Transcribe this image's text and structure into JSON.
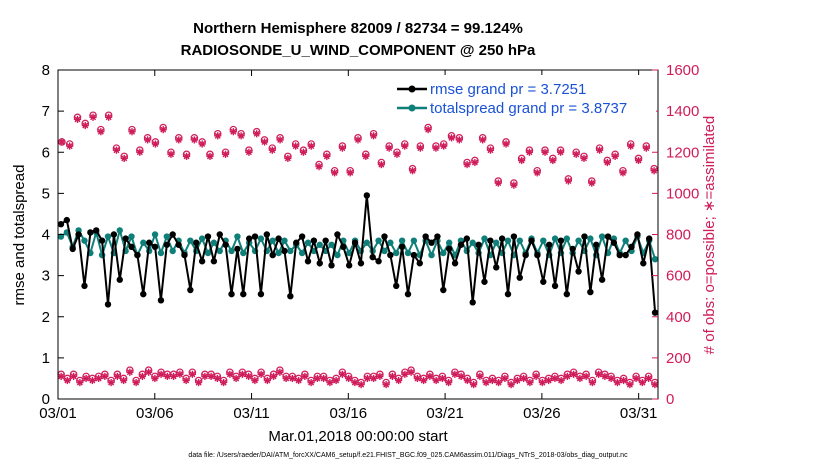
{
  "chart_data": {
    "type": "line",
    "title": "Northern Hemisphere 82009 / 82734 = 99.124%",
    "subtitle": "RADIOSONDE_U_WIND_COMPONENT @ 250 hPa",
    "xlabel": "Mar.01,2018 00:00:00 start",
    "ylabel_left": "rmse and totalspread",
    "ylabel_right": "# of obs: o=possible; ∗=assimilated",
    "footnote": "data file: /Users/raeder/DAI/ATM_forcXX/CAM6_setup/f.e21.FHIST_BGC.f09_025.CAM6assim.011/Diags_NTrS_2018-03/obs_diag_output.nc",
    "x_tick_values": [
      0,
      5,
      10,
      15,
      20,
      25,
      30
    ],
    "x_tick_labels": [
      "03/01",
      "03/06",
      "03/11",
      "03/16",
      "03/21",
      "03/26",
      "03/31"
    ],
    "xlim": [
      0,
      31
    ],
    "ylim_left": [
      0,
      8
    ],
    "y_ticks_left": [
      "0",
      "1",
      "2",
      "3",
      "4",
      "5",
      "6",
      "7",
      "8"
    ],
    "ylim_right": [
      0,
      1600
    ],
    "y_ticks_right": [
      "0",
      "200",
      "400",
      "600",
      "800",
      "1000",
      "1200",
      "1400",
      "1600"
    ],
    "legend": [
      {
        "label": "rmse grand pr = 3.7251",
        "color": "#000000"
      },
      {
        "label": "totalspread grand pr = 3.8737",
        "color": "#0f7f7a"
      }
    ],
    "legend_position": "top-right",
    "colors": {
      "rmse": "#000000",
      "totalspread": "#0f7f7a",
      "obs": "#cf1c5a"
    },
    "rmse": [
      4.25,
      4.35,
      3.65,
      4.0,
      2.75,
      4.05,
      4.1,
      3.85,
      2.3,
      4.0,
      2.9,
      3.9,
      3.7,
      3.5,
      2.55,
      3.8,
      3.7,
      2.4,
      3.75,
      4.0,
      3.75,
      3.5,
      2.65,
      3.8,
      3.35,
      3.95,
      3.35,
      4.0,
      3.75,
      2.55,
      3.65,
      2.55,
      3.9,
      3.95,
      2.55,
      4.0,
      3.5,
      3.9,
      3.6,
      2.5,
      3.8,
      3.95,
      3.35,
      3.85,
      3.3,
      3.85,
      3.25,
      4.0,
      3.7,
      3.25,
      3.8,
      3.3,
      4.95,
      3.45,
      3.35,
      3.95,
      3.5,
      2.75,
      3.7,
      2.55,
      3.5,
      3.3,
      3.95,
      3.8,
      3.95,
      2.65,
      3.65,
      3.3,
      3.75,
      3.9,
      2.35,
      3.75,
      2.85,
      3.85,
      3.2,
      3.9,
      2.55,
      3.95,
      2.95,
      3.5,
      3.85,
      3.5,
      2.85,
      3.75,
      2.75,
      3.85,
      2.55,
      3.65,
      3.1,
      3.95,
      2.6,
      3.75,
      2.9,
      3.95,
      3.8,
      3.5,
      3.5,
      3.7,
      4.0,
      3.3,
      3.9,
      2.1
    ],
    "totalspread": [
      3.95,
      4.05,
      3.7,
      4.1,
      3.85,
      3.55,
      4.05,
      3.5,
      3.95,
      3.55,
      4.1,
      3.6,
      3.95,
      3.5,
      3.8,
      3.6,
      4.0,
      3.55,
      3.95,
      3.6,
      3.85,
      3.55,
      3.85,
      3.6,
      3.9,
      3.55,
      3.8,
      3.6,
      3.85,
      3.6,
      3.95,
      3.55,
      3.8,
      3.6,
      3.9,
      3.6,
      3.85,
      3.55,
      3.85,
      3.6,
      3.75,
      3.55,
      3.8,
      3.6,
      3.75,
      3.6,
      3.75,
      3.5,
      3.85,
      3.55,
      3.85,
      3.6,
      3.8,
      3.6,
      3.85,
      3.6,
      3.8,
      3.55,
      3.85,
      3.55,
      3.85,
      3.5,
      3.85,
      3.5,
      3.85,
      3.55,
      3.8,
      3.5,
      3.85,
      3.6,
      3.8,
      3.55,
      3.9,
      3.5,
      3.8,
      3.55,
      3.85,
      3.5,
      3.85,
      3.55,
      3.9,
      3.55,
      3.85,
      3.5,
      3.9,
      3.55,
      3.9,
      3.55,
      3.85,
      3.6,
      3.9,
      3.5,
      3.95,
      3.55,
      3.9,
      3.55,
      3.85,
      3.6,
      3.95,
      3.55,
      3.85,
      3.4
    ],
    "obs_high_possible": [
      1250,
      1240,
      1370,
      1340,
      1380,
      1310,
      1380,
      1220,
      1180,
      1310,
      1210,
      1270,
      1250,
      1320,
      1200,
      1270,
      1190,
      1270,
      1250,
      1190,
      1290,
      1200,
      1310,
      1290,
      1210,
      1300,
      1260,
      1220,
      1270,
      1180,
      1240,
      1210,
      1240,
      1140,
      1190,
      1110,
      1230,
      1110,
      1270,
      1190,
      1290,
      1150,
      1230,
      1200,
      1240,
      1120,
      1230,
      1320,
      1230,
      1240,
      1280,
      1270,
      1150,
      1160,
      1270,
      1220,
      1060,
      1250,
      1050,
      1170,
      1210,
      1110,
      1210,
      1170,
      1210,
      1070,
      1200,
      1180,
      1060,
      1220,
      1160,
      1190,
      1110,
      1240,
      1170,
      1230,
      1120
    ],
    "obs_high_assimilated": [
      1250,
      1230,
      1360,
      1330,
      1370,
      1300,
      1370,
      1210,
      1170,
      1300,
      1200,
      1260,
      1240,
      1310,
      1190,
      1260,
      1180,
      1260,
      1240,
      1180,
      1280,
      1190,
      1300,
      1280,
      1200,
      1290,
      1250,
      1210,
      1260,
      1170,
      1230,
      1200,
      1230,
      1130,
      1180,
      1100,
      1220,
      1100,
      1260,
      1180,
      1280,
      1140,
      1220,
      1190,
      1230,
      1110,
      1220,
      1310,
      1220,
      1230,
      1270,
      1260,
      1140,
      1150,
      1260,
      1210,
      1050,
      1240,
      1040,
      1160,
      1200,
      1100,
      1200,
      1160,
      1200,
      1060,
      1190,
      1170,
      1050,
      1210,
      1150,
      1180,
      1100,
      1230,
      1160,
      1220,
      1110
    ],
    "obs_low_possible": [
      120,
      100,
      120,
      90,
      110,
      100,
      110,
      120,
      90,
      120,
      100,
      140,
      90,
      120,
      140,
      110,
      130,
      120,
      120,
      130,
      100,
      130,
      90,
      120,
      120,
      110,
      90,
      130,
      110,
      130,
      120,
      100,
      130,
      100,
      120,
      140,
      110,
      110,
      100,
      120,
      90,
      110,
      110,
      90,
      100,
      130,
      110,
      90,
      80,
      110,
      110,
      120,
      80,
      120,
      100,
      130,
      140,
      110,
      100,
      120,
      100,
      110,
      90,
      130,
      120,
      100,
      80,
      120,
      90,
      100,
      90,
      110,
      80,
      100,
      110,
      90,
      120,
      90,
      100,
      110,
      100,
      120,
      130,
      110,
      120,
      90,
      130,
      120,
      110,
      90,
      100,
      80,
      110,
      90,
      110,
      80
    ],
    "obs_low_assimilated": [
      110,
      90,
      110,
      80,
      100,
      90,
      100,
      110,
      80,
      110,
      90,
      130,
      80,
      110,
      130,
      100,
      120,
      110,
      110,
      120,
      90,
      120,
      80,
      110,
      110,
      100,
      80,
      120,
      100,
      120,
      110,
      90,
      120,
      90,
      110,
      130,
      100,
      100,
      90,
      110,
      80,
      100,
      100,
      80,
      90,
      120,
      100,
      80,
      70,
      100,
      100,
      110,
      70,
      110,
      90,
      120,
      130,
      100,
      90,
      110,
      90,
      100,
      80,
      120,
      110,
      90,
      70,
      110,
      80,
      90,
      80,
      100,
      70,
      90,
      100,
      80,
      110,
      80,
      90,
      100,
      90,
      110,
      120,
      100,
      110,
      80,
      120,
      110,
      100,
      80,
      90,
      70,
      100,
      80,
      100,
      70
    ]
  }
}
